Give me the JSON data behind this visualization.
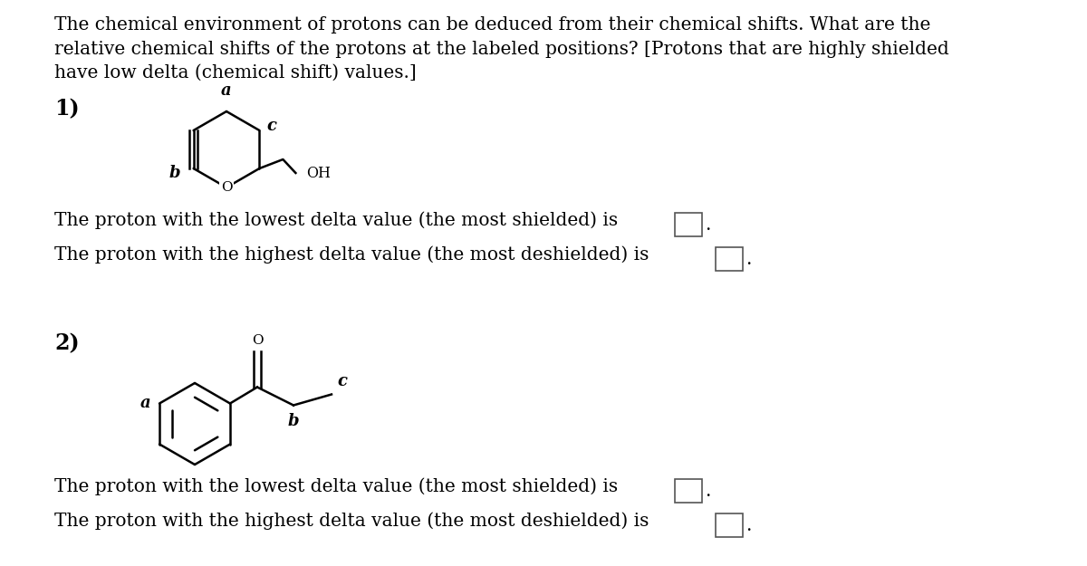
{
  "title_text": "The chemical environment of protons can be deduced from their chemical shifts. What are the\nrelative chemical shifts of the protons at the labeled positions? [Protons that are highly shielded\nhave low delta (chemical shift) values.]",
  "q1_label": "1)",
  "q2_label": "2)",
  "line1_lowest": "The proton with the lowest delta value (the most shielded) is",
  "line1_highest": "The proton with the highest delta value (the most deshielded) is",
  "line2_lowest": "The proton with the lowest delta value (the most shielded) is",
  "line2_highest": "The proton with the highest delta value (the most deshielded) is",
  "bg_color": "#ffffff",
  "text_color": "#000000",
  "font_size_title": 14.5,
  "font_size_body": 14.5,
  "font_size_number": 17,
  "font_size_mol_label": 12
}
